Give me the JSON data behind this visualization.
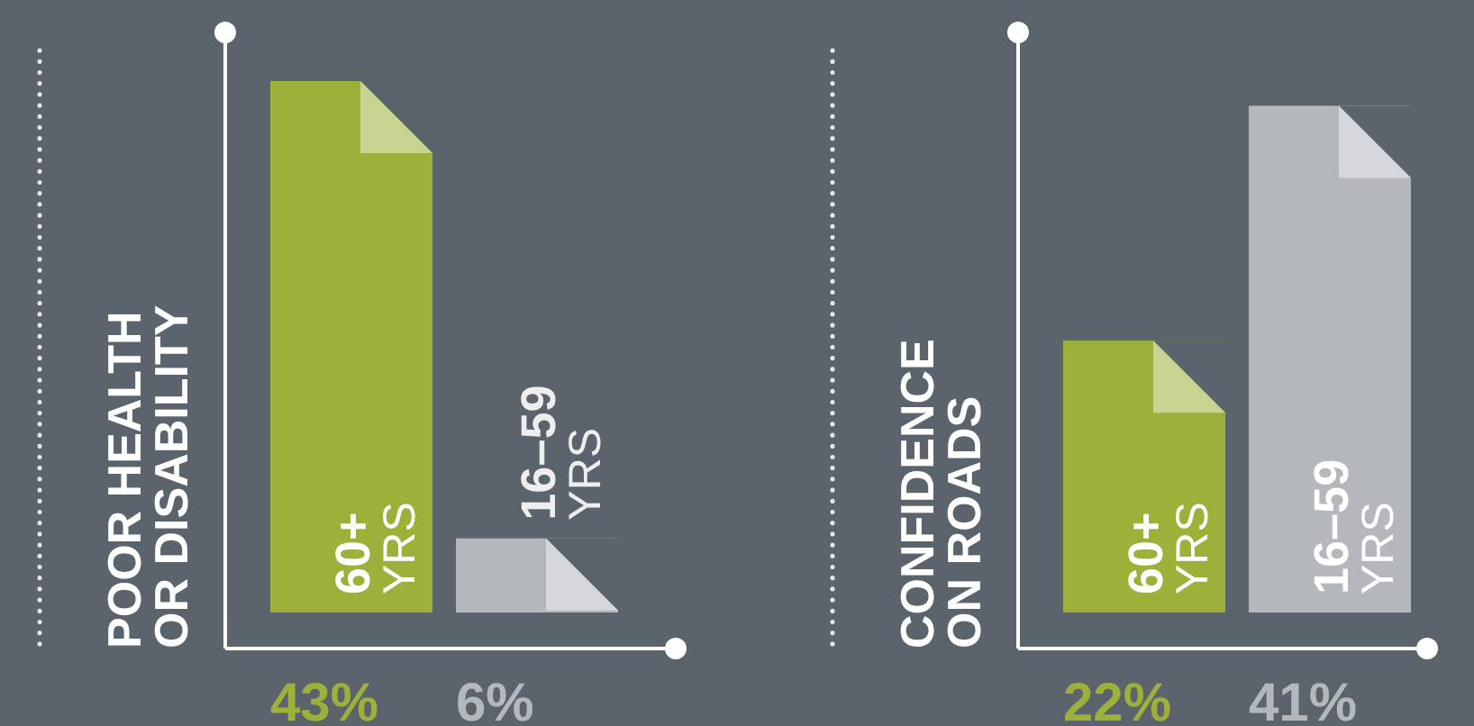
{
  "chart_data": [
    {
      "type": "bar",
      "title": "POOR HEALTH\nOR DISABILITY",
      "categories": [
        "60+ YRS",
        "16–59 YRS"
      ],
      "values": [
        43,
        6
      ],
      "colors": [
        "#9db03a",
        "#b4b7bb"
      ],
      "value_labels": [
        "43%",
        "6%"
      ]
    },
    {
      "type": "bar",
      "title": "CONFIDENCE\nON ROADS",
      "categories": [
        "60+ YRS",
        "16–59 YRS"
      ],
      "values": [
        22,
        41
      ],
      "colors": [
        "#9db03a",
        "#b4b7bb"
      ],
      "value_labels": [
        "22%",
        "41%"
      ]
    }
  ]
}
